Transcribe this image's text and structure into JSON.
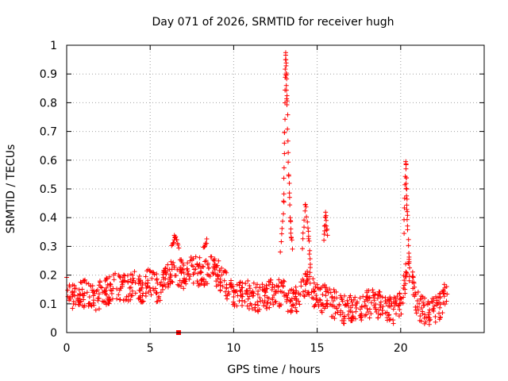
{
  "chart_data": {
    "type": "scatter",
    "title": "Day 071 of 2026, SRMTID for receiver hugh",
    "xlabel": "GPS time / hours",
    "ylabel": "SRMTID / TECUs",
    "xlim": [
      0,
      25
    ],
    "ylim": [
      0,
      1
    ],
    "xticks": [
      0,
      5,
      10,
      15,
      20
    ],
    "yticks": [
      0,
      0.1,
      0.2,
      0.3,
      0.4,
      0.5,
      0.6,
      0.7,
      0.8,
      0.9,
      1
    ],
    "xtick_labels": [
      "0",
      "5",
      "10",
      "15",
      "20"
    ],
    "ytick_labels": [
      "0",
      "0.1",
      "0.2",
      "0.3",
      "0.4",
      "0.5",
      "0.6",
      "0.7",
      "0.8",
      "0.9",
      "1"
    ],
    "grid": true,
    "marker": "+",
    "marker_color": "#ff0000",
    "outlier_marker": {
      "x": 6.7,
      "y": 0.0,
      "shape": "square"
    },
    "series": [
      {
        "name": "SRMTID",
        "baseline": [
          [
            0.0,
            0.15
          ],
          [
            0.5,
            0.12
          ],
          [
            1.0,
            0.14
          ],
          [
            1.5,
            0.12
          ],
          [
            2.0,
            0.13
          ],
          [
            2.5,
            0.15
          ],
          [
            3.0,
            0.16
          ],
          [
            3.5,
            0.15
          ],
          [
            4.0,
            0.17
          ],
          [
            4.5,
            0.15
          ],
          [
            5.0,
            0.18
          ],
          [
            5.5,
            0.15
          ],
          [
            6.0,
            0.2
          ],
          [
            6.5,
            0.22
          ],
          [
            7.0,
            0.2
          ],
          [
            7.5,
            0.22
          ],
          [
            8.0,
            0.21
          ],
          [
            8.5,
            0.22
          ],
          [
            9.0,
            0.21
          ],
          [
            9.5,
            0.17
          ],
          [
            10.0,
            0.14
          ],
          [
            10.5,
            0.14
          ],
          [
            11.0,
            0.13
          ],
          [
            11.5,
            0.12
          ],
          [
            12.0,
            0.13
          ],
          [
            12.5,
            0.14
          ],
          [
            13.0,
            0.14
          ],
          [
            13.5,
            0.1
          ],
          [
            14.0,
            0.14
          ],
          [
            14.5,
            0.17
          ],
          [
            15.0,
            0.12
          ],
          [
            15.5,
            0.12
          ],
          [
            16.0,
            0.1
          ],
          [
            16.5,
            0.08
          ],
          [
            17.0,
            0.08
          ],
          [
            17.5,
            0.08
          ],
          [
            18.0,
            0.1
          ],
          [
            18.5,
            0.1
          ],
          [
            19.0,
            0.09
          ],
          [
            19.5,
            0.07
          ],
          [
            20.0,
            0.1
          ],
          [
            20.3,
            0.2
          ],
          [
            20.5,
            0.22
          ],
          [
            20.8,
            0.14
          ],
          [
            21.0,
            0.1
          ],
          [
            21.5,
            0.07
          ],
          [
            22.0,
            0.08
          ],
          [
            22.5,
            0.1
          ],
          [
            22.8,
            0.17
          ]
        ],
        "spikes": [
          {
            "x": [
              12.8,
              13.0,
              13.05,
              13.1,
              13.15,
              13.2,
              13.3,
              13.4,
              13.5
            ],
            "y": [
              0.28,
              0.45,
              0.7,
              0.97,
              0.9,
              0.8,
              0.55,
              0.38,
              0.3
            ]
          },
          {
            "x": [
              14.1,
              14.3,
              14.5,
              14.6
            ],
            "y": [
              0.3,
              0.45,
              0.33,
              0.22
            ]
          },
          {
            "x": [
              15.4,
              15.5,
              15.6
            ],
            "y": [
              0.32,
              0.41,
              0.34
            ]
          },
          {
            "x": [
              20.2,
              20.3,
              20.35,
              20.4,
              20.5
            ],
            "y": [
              0.35,
              0.59,
              0.5,
              0.4,
              0.26
            ]
          },
          {
            "x": [
              6.3,
              6.5,
              6.7
            ],
            "y": [
              0.3,
              0.34,
              0.3
            ]
          },
          {
            "x": [
              8.2,
              8.4
            ],
            "y": [
              0.29,
              0.32
            ]
          }
        ]
      }
    ]
  }
}
